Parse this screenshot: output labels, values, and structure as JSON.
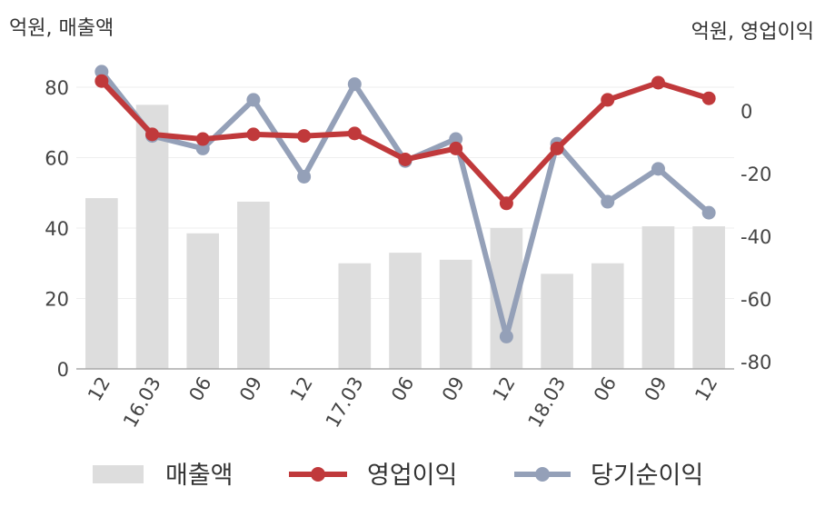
{
  "chart_data": {
    "type": "bar+line",
    "left_axis_label": "억원, 매출액",
    "right_axis_label": "억원, 영업이익",
    "categories": [
      "12",
      "16.03",
      "06",
      "09",
      "12",
      "17.03",
      "06",
      "09",
      "12",
      "18.03",
      "06",
      "09",
      "12"
    ],
    "left_ticks": [
      0,
      20,
      40,
      60,
      80
    ],
    "right_ticks": [
      0,
      -20,
      -40,
      -60,
      -80
    ],
    "left_ylim": [
      0,
      80
    ],
    "right_ylim": [
      -80,
      0
    ],
    "series": [
      {
        "name": "매출액",
        "kind": "bar",
        "axis": "left",
        "color": "#dddddd",
        "values": [
          48.5,
          75,
          38.5,
          47.5,
          null,
          30,
          33,
          31,
          40,
          27,
          30,
          40.5,
          40.5
        ]
      },
      {
        "name": "영업이익",
        "kind": "line",
        "axis": "right",
        "color": "#c0393b",
        "values": [
          9.5,
          -7.5,
          -9,
          -7.5,
          -8,
          -7.2,
          -15.5,
          -12,
          -29.5,
          -12,
          3.5,
          9,
          4
        ]
      },
      {
        "name": "당기순이익",
        "kind": "line",
        "axis": "right",
        "color": "#94a0b8",
        "values": [
          12.5,
          -8,
          -12,
          3.5,
          -21,
          8.5,
          -16,
          -9,
          -72,
          -10.5,
          -29,
          -18.5,
          -32.5
        ]
      }
    ],
    "legend_position": "bottom",
    "grid": true
  }
}
